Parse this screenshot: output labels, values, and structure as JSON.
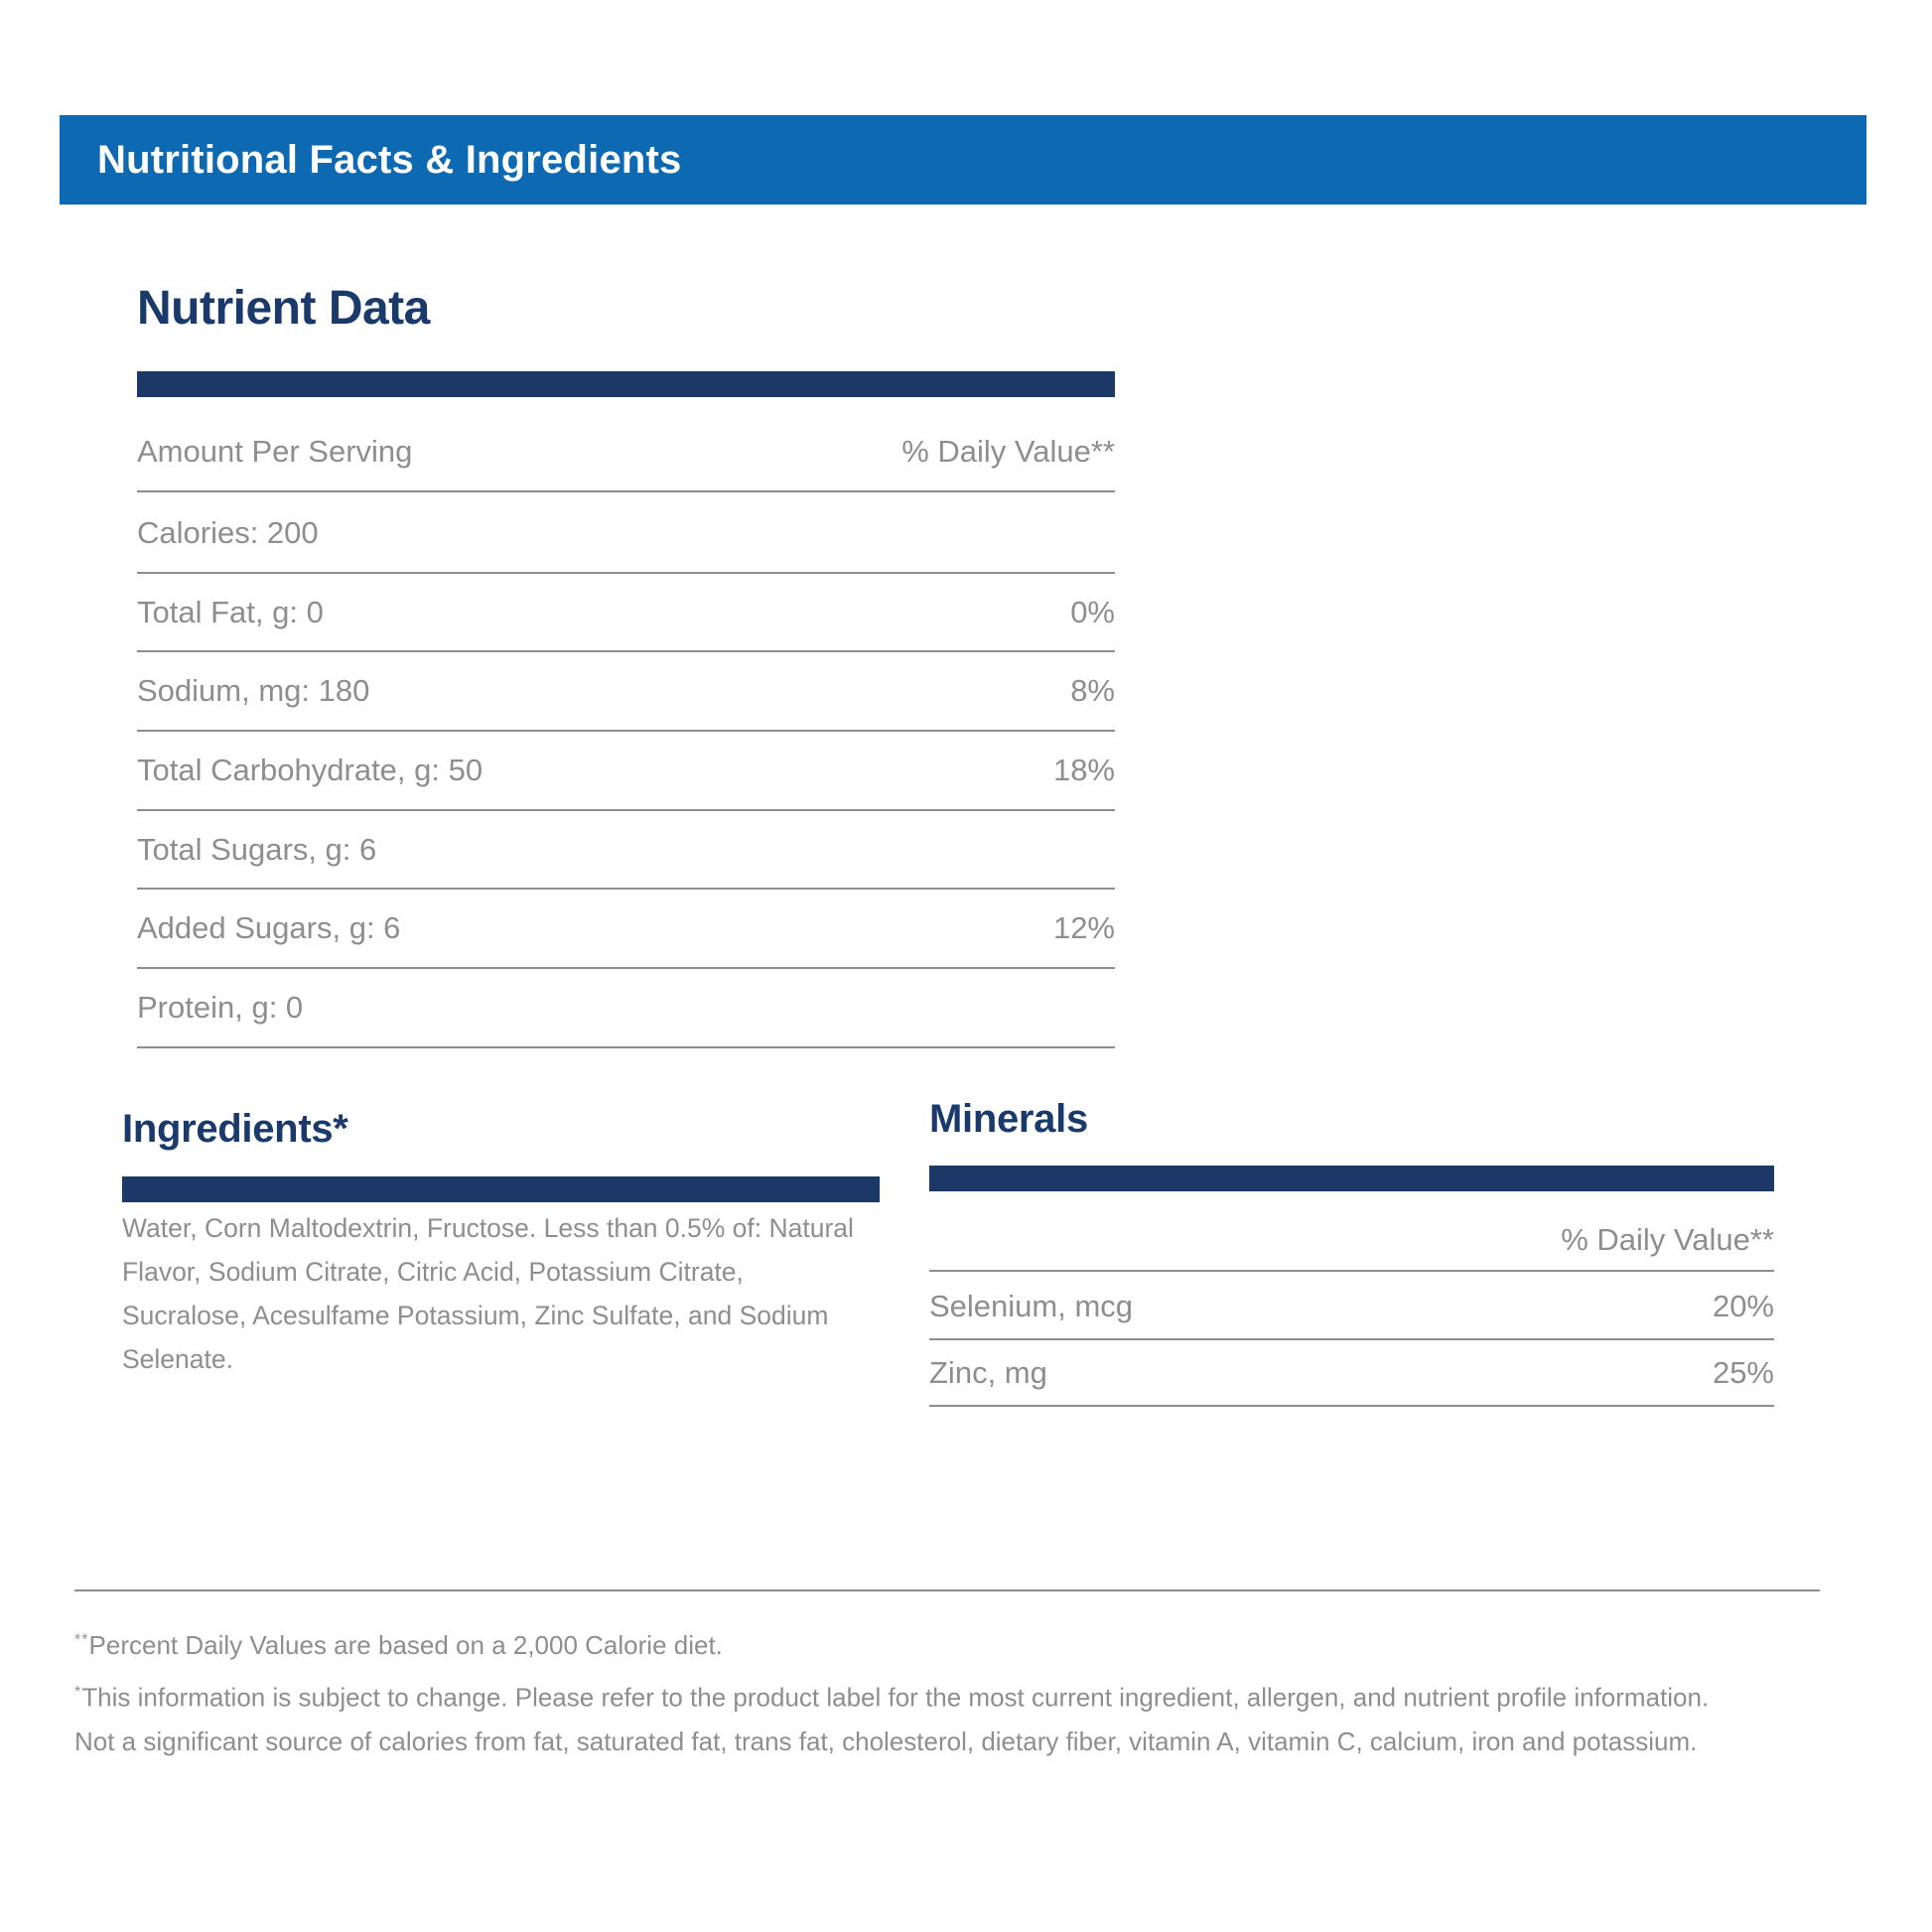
{
  "banner": {
    "title": "Nutritional Facts & Ingredients",
    "bg_color": "#0e69b3",
    "text_color": "#ffffff"
  },
  "accent_colors": {
    "navy_bar": "#1c3866",
    "heading_navy": "#1a3a6b",
    "body_gray": "#8e8e90",
    "line_gray": "#8d8d8d"
  },
  "nutrient_data": {
    "title": "Nutrient Data",
    "header": {
      "left": "Amount Per Serving",
      "right": "% Daily Value**"
    },
    "rows": [
      {
        "label": "Calories: 200",
        "value": ""
      },
      {
        "label": "Total Fat, g: 0",
        "value": "0%"
      },
      {
        "label": "Sodium, mg: 180",
        "value": "8%"
      },
      {
        "label": "Total Carbohydrate, g: 50",
        "value": "18%"
      },
      {
        "label": "Total Sugars, g: 6",
        "value": ""
      },
      {
        "label": "Added Sugars, g: 6",
        "value": "12%"
      },
      {
        "label": "Protein, g: 0",
        "value": ""
      }
    ]
  },
  "ingredients": {
    "title": "Ingredients*",
    "lines": [
      "Water, Corn Maltodextrin, Fructose. Less than 0.5% of: Natural",
      "Flavor, Sodium Citrate, Citric Acid, Potassium Citrate,",
      "Sucralose, Acesulfame Potassium, Zinc Sulfate, and Sodium",
      "Selenate."
    ]
  },
  "minerals": {
    "title": "Minerals",
    "value_header": "% Daily Value**",
    "rows": [
      {
        "label": "Selenium, mcg",
        "value": "20%"
      },
      {
        "label": "Zinc, mg",
        "value": "25%"
      }
    ]
  },
  "footnotes": {
    "daily_value_marker": "**",
    "daily_value_text": "Percent Daily Values are based on a 2,000 Calorie diet.",
    "change_marker": "*",
    "change_lines": [
      "This information is subject to change. Please refer to the product label for the most current ingredient, allergen, and nutrient profile information.",
      "Not a significant source of calories from fat, saturated fat, trans fat, cholesterol, dietary fiber, vitamin A, vitamin C, calcium, iron and potassium."
    ]
  }
}
